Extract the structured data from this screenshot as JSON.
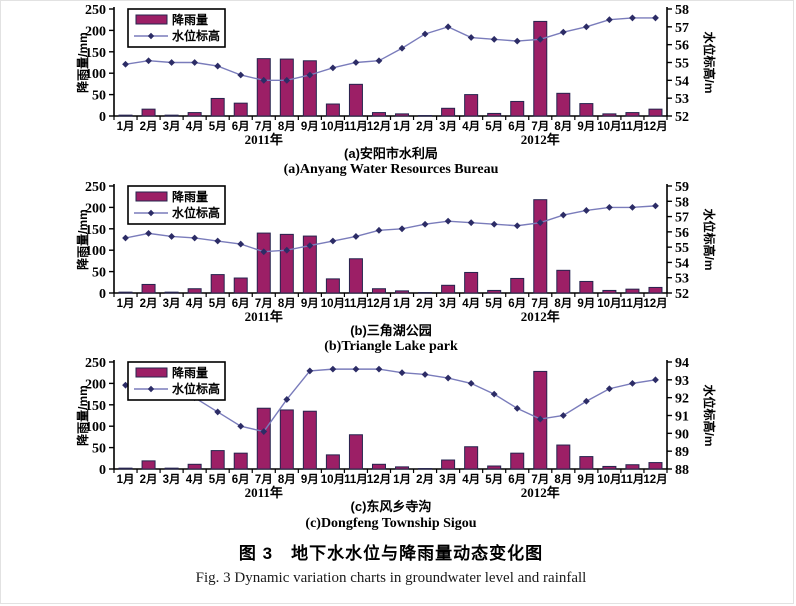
{
  "figure": {
    "caption_cn": "图 3　地下水水位与降雨量动态变化图",
    "caption_en": "Fig. 3 Dynamic variation charts in groundwater level and rainfall"
  },
  "legend": {
    "rainfall_label": "降雨量",
    "water_level_label": "水位标高"
  },
  "axis": {
    "months": [
      "1月",
      "2月",
      "3月",
      "4月",
      "5月",
      "6月",
      "7月",
      "8月",
      "9月",
      "10月",
      "11月",
      "12月"
    ],
    "years": [
      "2011年",
      "2012年"
    ],
    "rain_axis_label": "降雨量/mm",
    "level_axis_label": "水位标高/m"
  },
  "colors": {
    "bar_fill": "#9C1F66",
    "bar_stroke": "#26244E",
    "line": "#7A7CBB",
    "marker": "#2C2C66",
    "text": "#000000"
  },
  "chart_data": [
    {
      "type": "bar+line",
      "caption_cn": "(a)安阳市水利局",
      "caption_en": "(a)Anyang Water Resources Bureau",
      "rain_ylim": [
        0,
        250
      ],
      "rain_ticks": [
        0,
        50,
        100,
        150,
        200,
        250
      ],
      "level_ylim": [
        52,
        58
      ],
      "level_ticks": [
        52,
        53,
        54,
        55,
        56,
        57,
        58
      ],
      "series": [
        {
          "name": "降雨量",
          "axis": "left",
          "type": "bar",
          "values": [
            2,
            16,
            2,
            8,
            41,
            30,
            134,
            133,
            129,
            28,
            74,
            8,
            5,
            1,
            18,
            50,
            6,
            34,
            221,
            53,
            29,
            5,
            8,
            16
          ]
        },
        {
          "name": "水位标高",
          "axis": "right",
          "type": "line",
          "values": [
            54.9,
            55.1,
            55.0,
            55.0,
            54.8,
            54.3,
            54.0,
            54.0,
            54.3,
            54.7,
            55.0,
            55.1,
            55.8,
            56.6,
            57.0,
            56.4,
            56.3,
            56.2,
            56.3,
            56.7,
            57.0,
            57.4,
            57.5,
            57.5
          ]
        }
      ]
    },
    {
      "type": "bar+line",
      "caption_cn": "(b)三角湖公园",
      "caption_en": "(b)Triangle Lake park",
      "rain_ylim": [
        0,
        250
      ],
      "rain_ticks": [
        0,
        50,
        100,
        150,
        200,
        250
      ],
      "level_ylim": [
        52,
        59
      ],
      "level_ticks": [
        52,
        53,
        54,
        55,
        56,
        57,
        58,
        59
      ],
      "series": [
        {
          "name": "降雨量",
          "axis": "left",
          "type": "bar",
          "values": [
            2,
            20,
            2,
            10,
            43,
            35,
            140,
            137,
            133,
            33,
            80,
            10,
            5,
            1,
            18,
            48,
            6,
            34,
            218,
            53,
            27,
            6,
            9,
            13
          ]
        },
        {
          "name": "水位标高",
          "axis": "right",
          "type": "line",
          "values": [
            55.6,
            55.9,
            55.7,
            55.6,
            55.4,
            55.2,
            54.7,
            54.8,
            55.1,
            55.4,
            55.7,
            56.1,
            56.2,
            56.5,
            56.7,
            56.6,
            56.5,
            56.4,
            56.6,
            57.1,
            57.4,
            57.6,
            57.6,
            57.7
          ]
        }
      ]
    },
    {
      "type": "bar+line",
      "caption_cn": "(c)东风乡寺沟",
      "caption_en": "(c)Dongfeng Township Sigou",
      "rain_ylim": [
        0,
        250
      ],
      "rain_ticks": [
        0,
        50,
        100,
        150,
        200,
        250
      ],
      "level_ylim": [
        88,
        94
      ],
      "level_ticks": [
        88,
        89,
        90,
        91,
        92,
        93,
        94
      ],
      "series": [
        {
          "name": "降雨量",
          "axis": "left",
          "type": "bar",
          "values": [
            2,
            19,
            2,
            11,
            43,
            37,
            142,
            138,
            135,
            33,
            80,
            11,
            5,
            1,
            21,
            52,
            7,
            37,
            228,
            56,
            29,
            6,
            10,
            15
          ]
        },
        {
          "name": "水位标高",
          "axis": "right",
          "type": "line",
          "values": [
            92.7,
            92.5,
            92.3,
            92.0,
            91.2,
            90.4,
            90.1,
            91.9,
            93.5,
            93.6,
            93.6,
            93.6,
            93.4,
            93.3,
            93.1,
            92.8,
            92.2,
            91.4,
            90.8,
            91.0,
            91.8,
            92.5,
            92.8,
            93.0
          ]
        }
      ]
    }
  ]
}
